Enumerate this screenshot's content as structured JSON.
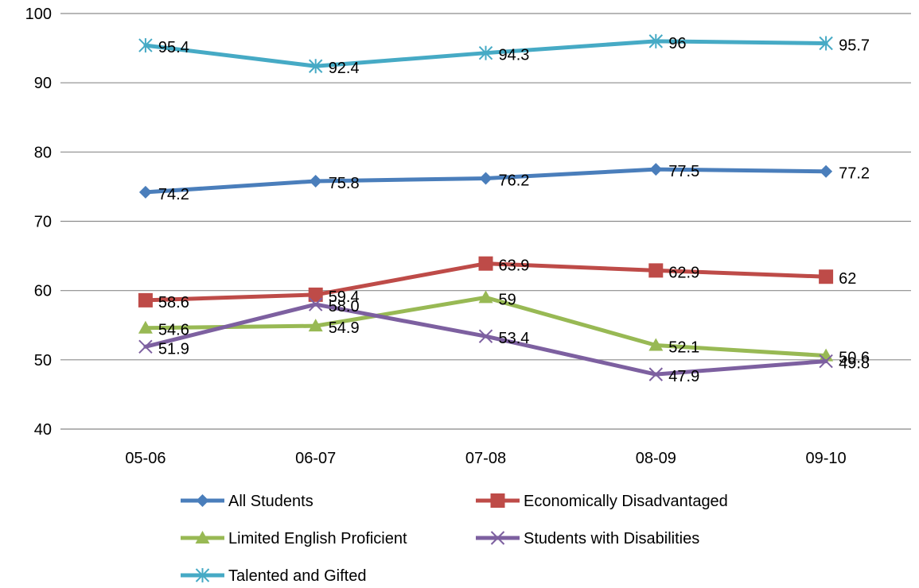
{
  "chart_data": {
    "type": "line",
    "title": "",
    "xlabel": "",
    "ylabel": "",
    "categories": [
      "05-06",
      "06-07",
      "07-08",
      "08-09",
      "09-10"
    ],
    "ylim": [
      40,
      100
    ],
    "yticks": [
      40,
      50,
      60,
      70,
      80,
      90,
      100
    ],
    "grid": true,
    "legend_position": "bottom",
    "series": [
      {
        "name": "All Students",
        "values": [
          74.2,
          75.8,
          76.2,
          77.5,
          77.2
        ],
        "labels": [
          "74.2",
          "75.8",
          "76.2",
          "77.5",
          "77.2"
        ],
        "color": "#4a7ebb",
        "marker": "diamond"
      },
      {
        "name": "Economically Disadvantaged",
        "values": [
          58.6,
          59.4,
          63.9,
          62.9,
          62
        ],
        "labels": [
          "58.6",
          "59.4",
          "63.9",
          "62.9",
          "62"
        ],
        "color": "#be4b48",
        "marker": "square"
      },
      {
        "name": "Limited English Proficient",
        "values": [
          54.6,
          54.9,
          59,
          52.1,
          50.6
        ],
        "labels": [
          "54.6",
          "54.9",
          "59",
          "52.1",
          "50.6"
        ],
        "color": "#98b954",
        "marker": "triangle"
      },
      {
        "name": "Students with Disabilities",
        "values": [
          51.9,
          58.0,
          53.4,
          47.9,
          49.8
        ],
        "labels": [
          "51.9",
          "58.0",
          "53.4",
          "47.9",
          "49.8"
        ],
        "color": "#7d60a0",
        "marker": "x"
      },
      {
        "name": "Talented and Gifted",
        "values": [
          95.4,
          92.4,
          94.3,
          96,
          95.7
        ],
        "labels": [
          "95.4",
          "92.4",
          "94.3",
          "96",
          "95.7"
        ],
        "color": "#46aac5",
        "marker": "asterisk"
      }
    ]
  }
}
